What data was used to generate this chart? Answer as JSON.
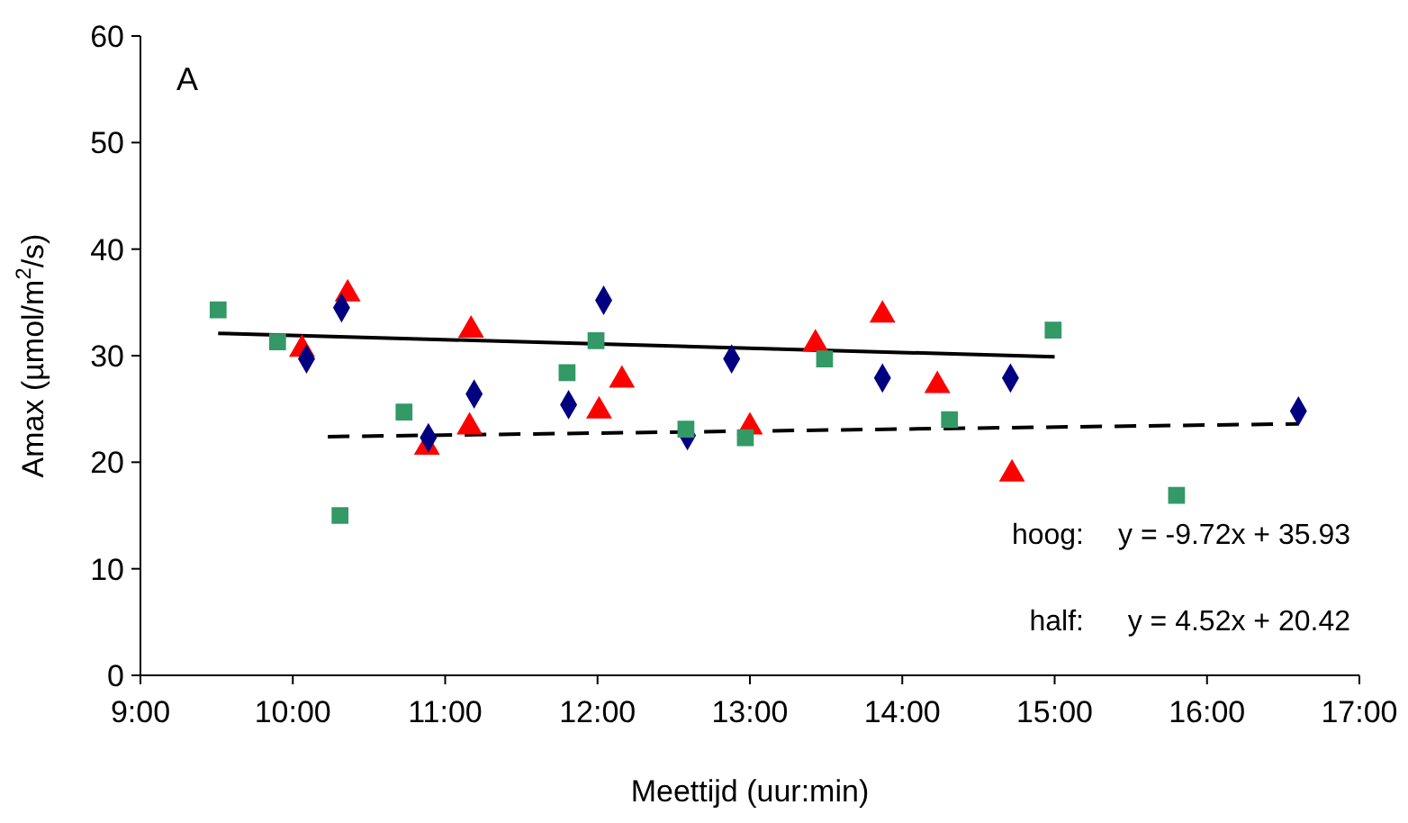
{
  "chart_data": {
    "type": "scatter",
    "xlabel": "Meettijd (uur:min)",
    "ylabel": "Amax (µmol/m$^{2}$/s)",
    "xlim": [
      9,
      17
    ],
    "xticks": [
      {
        "value": 9,
        "label": "9:00"
      },
      {
        "value": 10,
        "label": "10:00"
      },
      {
        "value": 11,
        "label": "11:00"
      },
      {
        "value": 12,
        "label": "12:00"
      },
      {
        "value": 13,
        "label": "13:00"
      },
      {
        "value": 14,
        "label": "14:00"
      },
      {
        "value": 15,
        "label": "15:00"
      },
      {
        "value": 16,
        "label": "16:00"
      },
      {
        "value": 17,
        "label": "17:00"
      }
    ],
    "ylim": [
      0,
      60
    ],
    "yticks": [
      0,
      10,
      20,
      30,
      40,
      50,
      60
    ],
    "annotations": [
      "A",
      "hoog:",
      "y = -9.72x + 35.93",
      "half:",
      "y = 4.52x + 20.42"
    ],
    "series": [
      {
        "color": "#339966",
        "marker": "square",
        "x": [
          9.51,
          9.9,
          11.8,
          11.99,
          13.49,
          14.99
        ],
        "values": [
          34.3,
          31.3,
          28.4,
          31.4,
          29.7,
          32.4
        ]
      },
      {
        "color": "#000080",
        "marker": "diamond",
        "x": [
          10.32,
          10.09,
          12.04,
          11.81,
          12.88,
          13.87
        ],
        "values": [
          34.5,
          29.7,
          35.2,
          25.4,
          29.7,
          27.9
        ]
      },
      {
        "color": "#ff0000",
        "marker": "triangle",
        "x": [
          10.36,
          10.06,
          11.17,
          12.16,
          13.43,
          13.87
        ],
        "values": [
          35.8,
          30.6,
          32.4,
          27.7,
          31.1,
          33.8
        ]
      },
      {
        "color": "#339966",
        "marker": "square",
        "x": [
          10.31,
          10.73,
          12.58,
          12.97,
          14.31,
          15.8
        ],
        "values": [
          15,
          24.7,
          23.1,
          22.3,
          24,
          16.9
        ]
      },
      {
        "color": "#000080",
        "marker": "diamond",
        "x": [
          11.19,
          10.89,
          12.59,
          14.71,
          16.6
        ],
        "values": [
          26.4,
          22.3,
          22.5,
          27.9,
          24.8
        ]
      },
      {
        "color": "#ff0000",
        "marker": "triangle",
        "x": [
          10.88,
          11.16,
          12.01,
          13,
          14.23,
          14.72
        ],
        "values": [
          21.4,
          23.3,
          24.8,
          23.3,
          27.2,
          18.9
        ]
      },
      {
        "type": "line",
        "color": "#000000",
        "line_style": "solid",
        "marker": "none",
        "x": [
          9.51,
          15
        ],
        "values": [
          32.1,
          29.9
        ]
      },
      {
        "type": "line",
        "color": "#000000",
        "line_style": "dashed",
        "marker": "none",
        "x": [
          10.23,
          16.6
        ],
        "values": [
          22.4,
          23.6
        ]
      }
    ]
  }
}
